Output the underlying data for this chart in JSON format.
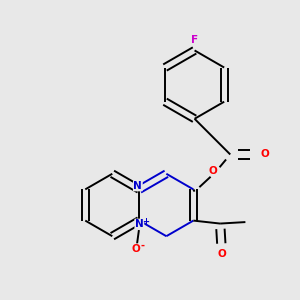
{
  "background_color": "#e8e8e8",
  "bond_color": "#000000",
  "nitrogen_color": "#0000cc",
  "oxygen_color": "#ff0000",
  "fluorine_color": "#cc00cc",
  "line_width": 1.4,
  "figsize": [
    3.0,
    3.0
  ],
  "dpi": 100,
  "xlim": [
    0,
    10
  ],
  "ylim": [
    0,
    10
  ]
}
